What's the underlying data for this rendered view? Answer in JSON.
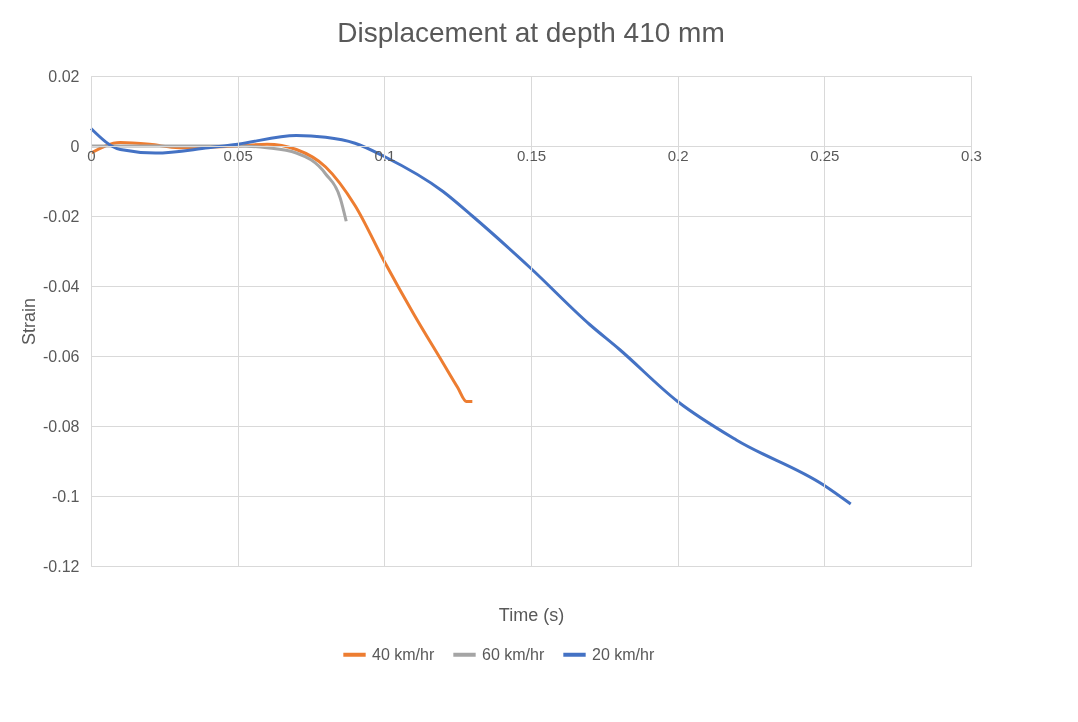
{
  "chart_data": {
    "type": "line",
    "title": "Displacement at depth 410 mm",
    "xlabel": "Time (s)",
    "ylabel": "Strain",
    "xlim": [
      0,
      0.3
    ],
    "xticks": [
      0,
      0.05,
      0.1,
      0.15,
      0.2,
      0.25,
      0.3
    ],
    "ylim": [
      -0.12,
      0.02
    ],
    "yticks": [
      -0.12,
      -0.1,
      -0.08,
      -0.06,
      -0.04,
      -0.02,
      0,
      0.02
    ],
    "grid": true,
    "legend": "bottom",
    "marker": "none",
    "line_style": "solid",
    "series": [
      {
        "name": "40 km/hr",
        "color": "#ed7d31",
        "x": [
          0,
          0.01,
          0.02,
          0.03,
          0.05,
          0.06,
          0.07,
          0.08,
          0.09,
          0.1,
          0.11,
          0.12,
          0.125,
          0.128,
          0.13
        ],
        "values": [
          -0.002,
          0.001,
          0.0005,
          -0.0005,
          0,
          0.0005,
          -0.001,
          -0.006,
          -0.017,
          -0.033,
          -0.048,
          -0.062,
          -0.069,
          -0.073,
          -0.073
        ]
      },
      {
        "name": "60 km/hr",
        "color": "#a5a5a5",
        "x": [
          0,
          0.01,
          0.02,
          0.03,
          0.04,
          0.05,
          0.06,
          0.07,
          0.08,
          0.085,
          0.087
        ],
        "values": [
          0,
          0,
          0,
          0,
          0,
          0,
          -0.0005,
          -0.002,
          -0.008,
          -0.015,
          -0.0215
        ]
      },
      {
        "name": "20 km/hr",
        "color": "#4472c4",
        "x": [
          0,
          0.01,
          0.022,
          0.04,
          0.05,
          0.07,
          0.08,
          0.09,
          0.1,
          0.12,
          0.13,
          0.15,
          0.17,
          0.18,
          0.2,
          0.22,
          0.25,
          0.259
        ],
        "values": [
          0.005,
          -0.001,
          -0.002,
          -0.0005,
          0.0005,
          0.003,
          0.0025,
          0.0008,
          -0.003,
          -0.013,
          -0.02,
          -0.035,
          -0.051,
          -0.058,
          -0.073,
          -0.084,
          -0.097,
          -0.1023
        ]
      }
    ]
  }
}
